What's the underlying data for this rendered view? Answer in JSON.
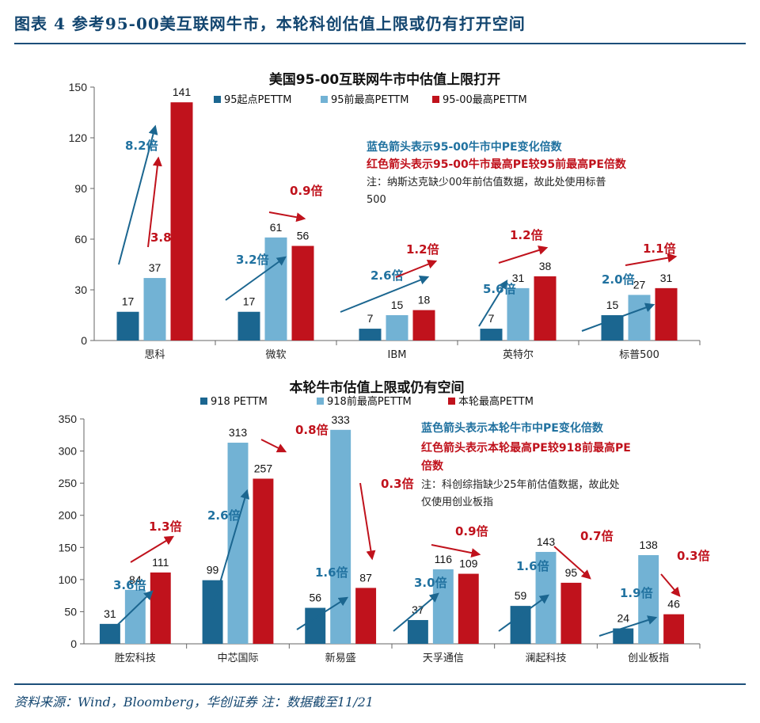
{
  "figure_title": "图表 4 参考95-00美互联网牛市，本轮科创估值上限或仍有打开空间",
  "source": "资料来源：Wind，Bloomberg，华创证券 注：数据截至11/21",
  "colors": {
    "dark": "#1b6690",
    "light": "#72b2d4",
    "red": "#c0121c",
    "blue_text": "#2172a0",
    "red_text": "#c0121c"
  },
  "chart_data": [
    {
      "type": "bar",
      "title": "美国95-00互联网牛市中估值上限打开",
      "categories": [
        "思科",
        "微软",
        "IBM",
        "英特尔",
        "标普500"
      ],
      "ylim": [
        0,
        150
      ],
      "yticks": [
        0,
        30,
        60,
        90,
        120,
        150
      ],
      "series": [
        {
          "name": "95起点PETTM",
          "values": [
            17,
            17,
            7,
            7,
            15
          ]
        },
        {
          "name": "95前最高PETTM",
          "values": [
            37,
            61,
            15,
            31,
            27
          ]
        },
        {
          "name": "95-00最高PETTM",
          "values": [
            141,
            56,
            18,
            38,
            31
          ]
        }
      ],
      "blue_arrow_labels": [
        "8.2倍",
        "3.2倍",
        "2.6倍",
        "5.6倍",
        "2.0倍"
      ],
      "red_arrow_labels": [
        "3.8倍",
        "0.9倍",
        "1.2倍",
        "1.2倍",
        "1.1倍"
      ],
      "annotation": {
        "blue": "蓝色箭头表示95-00牛市中PE变化倍数",
        "red": "红色箭头表示95-00牛市最高PE较95前最高PE倍数",
        "note": [
          "注：纳斯达克缺少00年前估值数据，故此处使用标普",
          "500"
        ]
      }
    },
    {
      "type": "bar",
      "title": "本轮牛市估值上限或仍有空间",
      "categories": [
        "胜宏科技",
        "中芯国际",
        "新易盛",
        "天孚通信",
        "澜起科技",
        "创业板指"
      ],
      "ylim": [
        0,
        350
      ],
      "yticks": [
        0,
        50,
        100,
        150,
        200,
        250,
        300,
        350
      ],
      "series": [
        {
          "name": "918 PETTM",
          "values": [
            31,
            99,
            56,
            37,
            59,
            24
          ]
        },
        {
          "name": "918前最高PETTM",
          "values": [
            84,
            313,
            333,
            116,
            143,
            138
          ]
        },
        {
          "name": "本轮最高PETTM",
          "values": [
            111,
            257,
            87,
            109,
            95,
            46
          ]
        }
      ],
      "blue_arrow_labels": [
        "3.6倍",
        "2.6倍",
        "1.6倍",
        "3.0倍",
        "1.6倍",
        "1.9倍"
      ],
      "red_arrow_labels": [
        "1.3倍",
        "0.8倍",
        "0.3倍",
        "0.9倍",
        "0.7倍",
        "0.3倍"
      ],
      "annotation": {
        "blue": "蓝色箭头表示本轮牛市中PE变化倍数",
        "red": [
          "红色箭头表示本轮最高PE较918前最高PE",
          "倍数"
        ],
        "note": [
          "注：科创综指缺少25年前估值数据，故此处",
          "仅使用创业板指"
        ]
      }
    }
  ]
}
